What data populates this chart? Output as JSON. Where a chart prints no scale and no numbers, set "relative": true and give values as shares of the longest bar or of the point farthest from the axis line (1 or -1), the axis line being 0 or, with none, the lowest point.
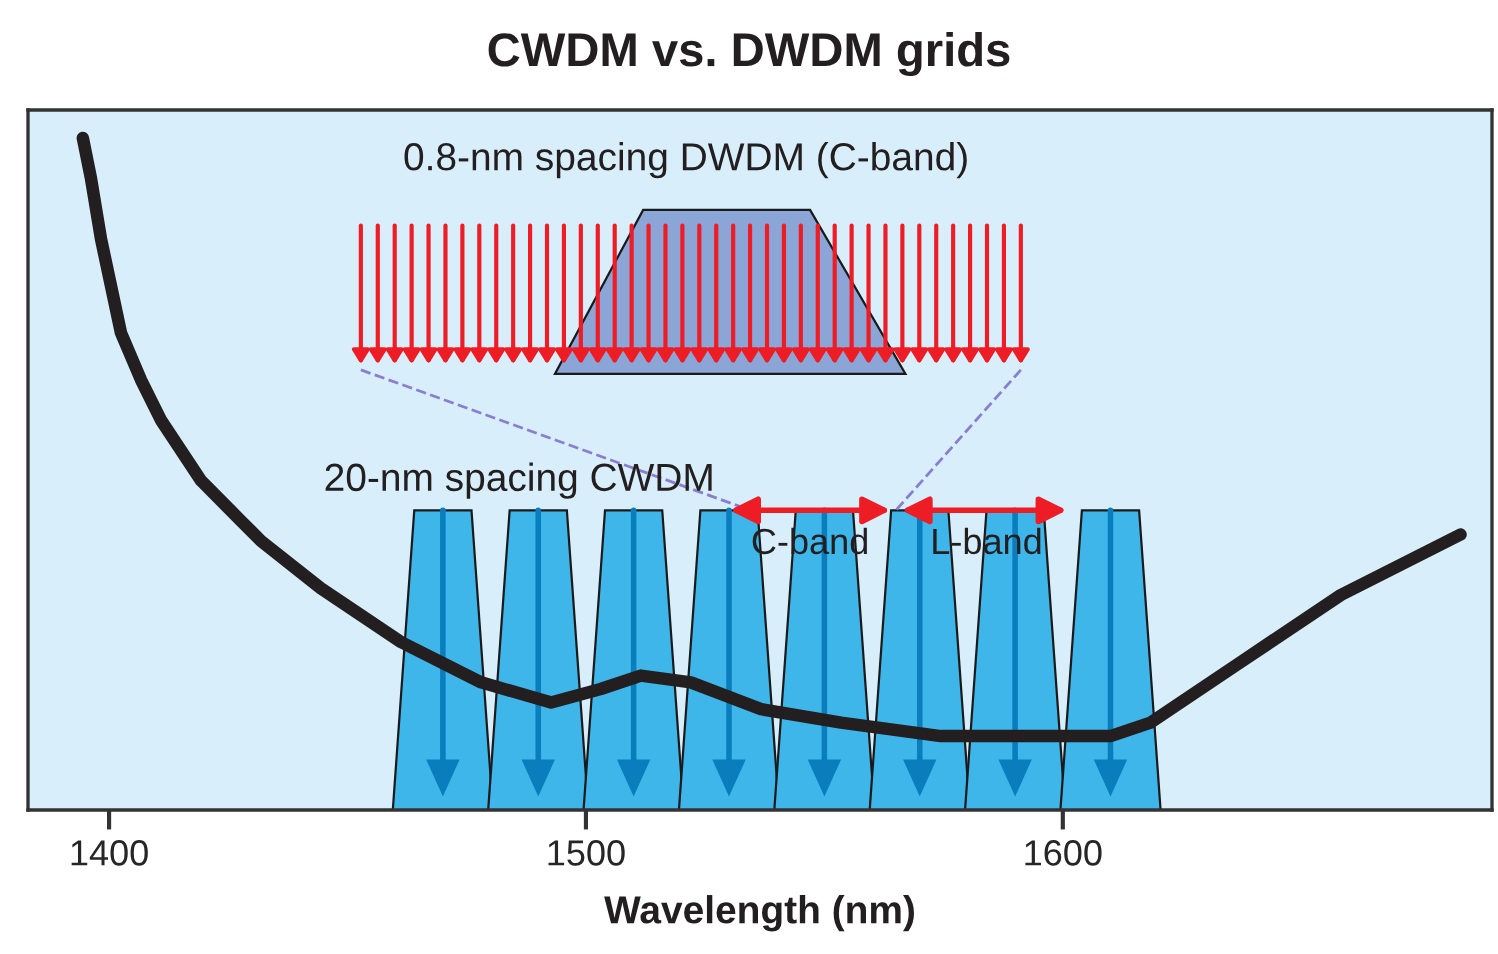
{
  "chart_data": {
    "type": "line",
    "title": "CWDM vs. DWDM grids",
    "xlabel": "Wavelength (nm)",
    "relative": true,
    "x": [
      1394.5,
      1396.2,
      1398.3,
      1402.5,
      1406.7,
      1410.9,
      1419.3,
      1427.7,
      1431.9,
      1444.4,
      1461.2,
      1478,
      1492.7,
      1503.1,
      1511.5,
      1522,
      1536.7,
      1553.5,
      1574.4,
      1610,
      1618.4,
      1637.3,
      1658.3,
      1683.4
    ],
    "series": [
      {
        "color": "#231f20",
        "values": [
          1.0,
          0.94,
          0.85,
          0.71,
          0.64,
          0.58,
          0.49,
          0.43,
          0.4,
          0.33,
          0.25,
          0.19,
          0.16,
          0.18,
          0.2,
          0.19,
          0.15,
          0.13,
          0.11,
          0.11,
          0.13,
          0.22,
          0.32,
          0.41
        ]
      }
    ],
    "xlim": [
      1383,
      1690
    ],
    "xticks": [
      1400,
      1500,
      1600
    ],
    "grid": false,
    "legend": false,
    "marker": "none",
    "line_style": "solid",
    "ref_lines": [
      {
        "axis": "x",
        "value": 1470,
        "color": "#0a7dbd"
      },
      {
        "axis": "x",
        "value": 1490,
        "color": "#0a7dbd"
      },
      {
        "axis": "x",
        "value": 1510,
        "color": "#0a7dbd"
      },
      {
        "axis": "x",
        "value": 1530,
        "color": "#0a7dbd"
      },
      {
        "axis": "x",
        "value": 1550,
        "color": "#0a7dbd"
      },
      {
        "axis": "x",
        "value": 1570,
        "color": "#0a7dbd"
      },
      {
        "axis": "x",
        "value": 1590,
        "color": "#0a7dbd"
      },
      {
        "axis": "x",
        "value": 1610,
        "color": "#0a7dbd"
      }
    ],
    "annotations": [
      "0.8-nm spacing DWDM (C-band)",
      "20-nm spacing CWDM",
      "C-band",
      "L-band"
    ]
  }
}
